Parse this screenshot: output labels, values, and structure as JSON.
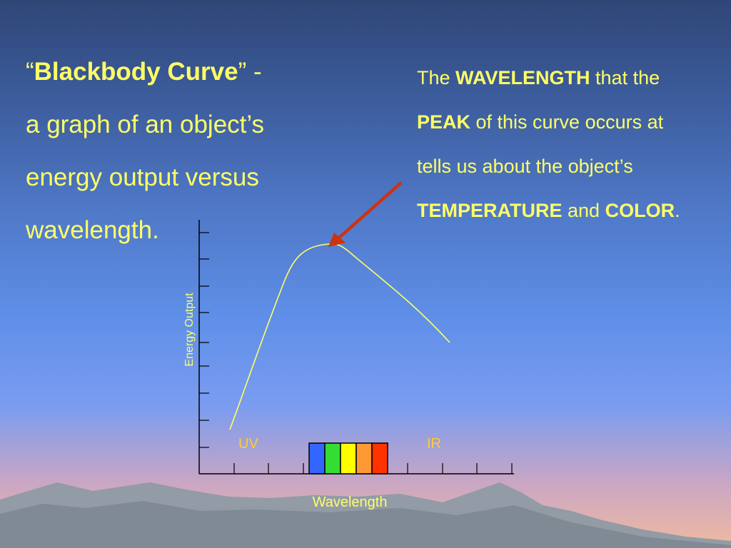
{
  "title": {
    "open_quote": "“",
    "bold": "Blackbody Curve",
    "close_quote_dash": "” -",
    "rest": "a graph of an object’s energy output versus wavelength."
  },
  "info": {
    "t1": "The ",
    "b1": "WAVELENGTH",
    "t2": " that the ",
    "b2": "PEAK",
    "t3": " of this curve occurs at tells us about the object’s ",
    "b3": "TEMPERATURE",
    "t4": " and ",
    "b4": "COLOR",
    "t5": "."
  },
  "diagram": {
    "y_axis_label": "Energy Output",
    "x_axis_label": "Wavelength",
    "uv_label": "UV",
    "ir_label": "IR",
    "curve_color": "#ffff66",
    "arrow_color": "#cc3311",
    "spectrum_colors": [
      "#3366ff",
      "#33dd33",
      "#ffff00",
      "#ff9933",
      "#ff3300"
    ],
    "mountain_color": "#8e9aa4"
  }
}
